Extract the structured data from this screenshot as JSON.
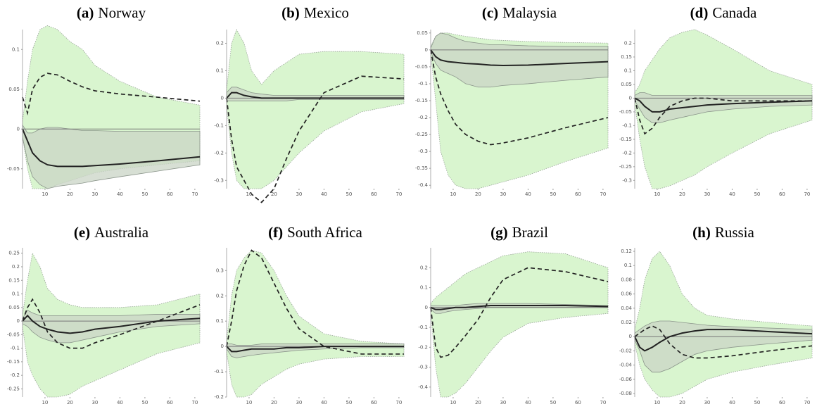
{
  "chart_data": [
    {
      "type": "line",
      "label": "(a)",
      "title": "Norway",
      "x": [
        1,
        3,
        5,
        8,
        11,
        15,
        20,
        25,
        30,
        40,
        55,
        72
      ],
      "xlim": [
        1,
        72
      ],
      "xticks": [
        10,
        20,
        30,
        40,
        50,
        60,
        70
      ],
      "ylim": [
        -0.075,
        0.125
      ],
      "yticks": [
        -0.05,
        0,
        0.05,
        0.1
      ],
      "bands": [
        {
          "color": "#d9f5cf",
          "lower": [
            -0.01,
            -0.05,
            -0.075,
            -0.075,
            -0.075,
            -0.07,
            -0.065,
            -0.06,
            -0.055,
            -0.05,
            -0.045,
            -0.04
          ],
          "upper": [
            0.01,
            0.06,
            0.1,
            0.125,
            0.13,
            0.125,
            0.11,
            0.1,
            0.08,
            0.06,
            0.04,
            0.03
          ]
        },
        {
          "color": "#c9d4c6",
          "lower": [
            -0.01,
            -0.04,
            -0.06,
            -0.07,
            -0.075,
            -0.072,
            -0.07,
            -0.068,
            -0.065,
            -0.06,
            -0.053,
            -0.045
          ],
          "upper": [
            0.005,
            -0.005,
            -0.005,
            0,
            0.002,
            0.002,
            0,
            -0.002,
            -0.002,
            -0.003,
            -0.003,
            -0.003
          ]
        }
      ],
      "series": [
        {
          "color": "#222222",
          "dash": false,
          "values": [
            0,
            -0.015,
            -0.03,
            -0.04,
            -0.045,
            -0.047,
            -0.047,
            -0.047,
            -0.046,
            -0.044,
            -0.04,
            -0.035
          ]
        },
        {
          "color": "#222222",
          "dash": true,
          "values": [
            0.04,
            0.02,
            0.05,
            0.065,
            0.07,
            0.068,
            0.06,
            0.053,
            0.048,
            0.044,
            0.04,
            0.035
          ]
        }
      ]
    },
    {
      "type": "line",
      "label": "(b)",
      "title": "Mexico",
      "x": [
        1,
        3,
        5,
        8,
        11,
        15,
        20,
        25,
        30,
        40,
        55,
        72
      ],
      "xlim": [
        1,
        72
      ],
      "xticks": [
        10,
        20,
        30,
        40,
        50,
        60,
        70
      ],
      "ylim": [
        -0.33,
        0.25
      ],
      "yticks": [
        -0.3,
        -0.2,
        -0.1,
        0,
        0.1,
        0.2
      ],
      "bands": [
        {
          "color": "#d9f5cf",
          "lower": [
            -0.03,
            -0.2,
            -0.3,
            -0.33,
            -0.33,
            -0.33,
            -0.3,
            -0.25,
            -0.2,
            -0.12,
            -0.05,
            -0.02
          ],
          "upper": [
            0.03,
            0.2,
            0.25,
            0.2,
            0.1,
            0.05,
            0.1,
            0.13,
            0.16,
            0.17,
            0.17,
            0.16
          ]
        },
        {
          "color": "#c9d4c6",
          "lower": [
            -0.01,
            -0.01,
            -0.01,
            -0.01,
            -0.01,
            -0.01,
            -0.01,
            -0.01,
            -0.005,
            -0.005,
            -0.005,
            -0.005
          ],
          "upper": [
            0.02,
            0.04,
            0.04,
            0.03,
            0.02,
            0.015,
            0.01,
            0.01,
            0.01,
            0.01,
            0.01,
            0.01
          ]
        }
      ],
      "series": [
        {
          "color": "#222222",
          "dash": false,
          "values": [
            0,
            0.02,
            0.02,
            0.01,
            0.005,
            0,
            0,
            0,
            0,
            0,
            0,
            0
          ]
        },
        {
          "color": "#222222",
          "dash": true,
          "values": [
            0,
            -0.15,
            -0.25,
            -0.3,
            -0.35,
            -0.38,
            -0.33,
            -0.22,
            -0.12,
            0.02,
            0.08,
            0.07
          ]
        }
      ]
    },
    {
      "type": "line",
      "label": "(c)",
      "title": "Malaysia",
      "x": [
        1,
        3,
        5,
        8,
        11,
        15,
        20,
        25,
        30,
        40,
        55,
        72
      ],
      "xlim": [
        1,
        72
      ],
      "xticks": [
        10,
        20,
        30,
        40,
        50,
        60,
        70
      ],
      "ylim": [
        -0.41,
        0.06
      ],
      "yticks": [
        -0.4,
        -0.35,
        -0.3,
        -0.25,
        -0.2,
        -0.15,
        -0.1,
        -0.05,
        0,
        0.05
      ],
      "bands": [
        {
          "color": "#d9f5cf",
          "lower": [
            -0.01,
            -0.15,
            -0.3,
            -0.37,
            -0.4,
            -0.41,
            -0.41,
            -0.4,
            -0.39,
            -0.37,
            -0.33,
            -0.29
          ],
          "upper": [
            0.01,
            0.04,
            0.05,
            0.05,
            0.045,
            0.04,
            0.035,
            0.03,
            0.028,
            0.025,
            0.022,
            0.02
          ]
        },
        {
          "color": "#c9d4c6",
          "lower": [
            -0.005,
            -0.04,
            -0.06,
            -0.07,
            -0.08,
            -0.1,
            -0.11,
            -0.11,
            -0.105,
            -0.1,
            -0.09,
            -0.08
          ],
          "upper": [
            0.005,
            0.04,
            0.05,
            0.045,
            0.035,
            0.025,
            0.02,
            0.015,
            0.015,
            0.012,
            0.01,
            0.01
          ]
        }
      ],
      "series": [
        {
          "color": "#222222",
          "dash": false,
          "values": [
            0,
            -0.02,
            -0.03,
            -0.035,
            -0.037,
            -0.04,
            -0.042,
            -0.045,
            -0.046,
            -0.045,
            -0.04,
            -0.035
          ]
        },
        {
          "color": "#222222",
          "dash": true,
          "values": [
            0,
            -0.08,
            -0.13,
            -0.18,
            -0.22,
            -0.25,
            -0.27,
            -0.28,
            -0.275,
            -0.26,
            -0.23,
            -0.2
          ]
        }
      ]
    },
    {
      "type": "line",
      "label": "(d)",
      "title": "Canada",
      "x": [
        1,
        3,
        5,
        8,
        11,
        15,
        20,
        25,
        30,
        40,
        55,
        72
      ],
      "xlim": [
        1,
        72
      ],
      "xticks": [
        10,
        20,
        30,
        40,
        50,
        60,
        70
      ],
      "ylim": [
        -0.33,
        0.25
      ],
      "yticks": [
        -0.3,
        -0.25,
        -0.2,
        -0.15,
        -0.1,
        -0.05,
        0,
        0.05,
        0.1,
        0.15,
        0.2
      ],
      "bands": [
        {
          "color": "#d9f5cf",
          "lower": [
            -0.02,
            -0.15,
            -0.25,
            -0.33,
            -0.33,
            -0.32,
            -0.3,
            -0.28,
            -0.25,
            -0.2,
            -0.13,
            -0.08
          ],
          "upper": [
            0.02,
            0.05,
            0.1,
            0.14,
            0.18,
            0.22,
            0.24,
            0.25,
            0.23,
            0.18,
            0.1,
            0.05
          ]
        },
        {
          "color": "#c9d4c6",
          "lower": [
            -0.01,
            -0.04,
            -0.07,
            -0.09,
            -0.09,
            -0.08,
            -0.07,
            -0.06,
            -0.05,
            -0.04,
            -0.03,
            -0.025
          ],
          "upper": [
            0.01,
            0.02,
            0.02,
            0.01,
            0.01,
            0.01,
            0.01,
            0.01,
            0.01,
            0.01,
            0.01,
            0.01
          ]
        }
      ],
      "series": [
        {
          "color": "#222222",
          "dash": false,
          "values": [
            0,
            -0.01,
            -0.03,
            -0.05,
            -0.05,
            -0.04,
            -0.035,
            -0.03,
            -0.025,
            -0.02,
            -0.015,
            -0.01
          ]
        },
        {
          "color": "#222222",
          "dash": true,
          "values": [
            0,
            -0.08,
            -0.13,
            -0.11,
            -0.07,
            -0.03,
            -0.01,
            0,
            0,
            -0.01,
            -0.01,
            -0.01
          ]
        }
      ]
    },
    {
      "type": "line",
      "label": "(e)",
      "title": "Australia",
      "x": [
        1,
        3,
        5,
        8,
        11,
        15,
        20,
        25,
        30,
        40,
        55,
        72
      ],
      "xlim": [
        1,
        72
      ],
      "xticks": [
        10,
        20,
        30,
        40,
        50,
        60,
        70
      ],
      "ylim": [
        -0.28,
        0.27
      ],
      "yticks": [
        -0.25,
        -0.2,
        -0.15,
        -0.1,
        -0.05,
        0,
        0.05,
        0.1,
        0.15,
        0.2,
        0.25
      ],
      "bands": [
        {
          "color": "#d9f5cf",
          "lower": [
            -0.02,
            -0.15,
            -0.2,
            -0.25,
            -0.28,
            -0.28,
            -0.27,
            -0.24,
            -0.22,
            -0.18,
            -0.12,
            -0.08
          ],
          "upper": [
            0.02,
            0.15,
            0.25,
            0.2,
            0.12,
            0.08,
            0.06,
            0.05,
            0.05,
            0.05,
            0.06,
            0.1
          ]
        },
        {
          "color": "#c9d4c6",
          "lower": [
            -0.01,
            -0.02,
            -0.04,
            -0.06,
            -0.07,
            -0.08,
            -0.08,
            -0.07,
            -0.06,
            -0.04,
            -0.02,
            -0.01
          ],
          "upper": [
            0.01,
            0.04,
            0.03,
            0.02,
            0.02,
            0.02,
            0.02,
            0.02,
            0.02,
            0.02,
            0.025,
            0.025
          ]
        }
      ],
      "series": [
        {
          "color": "#222222",
          "dash": false,
          "values": [
            0,
            0.02,
            0,
            -0.02,
            -0.03,
            -0.04,
            -0.045,
            -0.04,
            -0.03,
            -0.02,
            0,
            0.01
          ]
        },
        {
          "color": "#222222",
          "dash": true,
          "values": [
            0,
            0.05,
            0.08,
            0.03,
            -0.04,
            -0.08,
            -0.1,
            -0.1,
            -0.08,
            -0.05,
            0,
            0.06
          ]
        }
      ]
    },
    {
      "type": "line",
      "label": "(f)",
      "title": "South Africa",
      "x": [
        1,
        3,
        5,
        8,
        11,
        15,
        20,
        25,
        30,
        40,
        55,
        72
      ],
      "xlim": [
        1,
        72
      ],
      "xticks": [
        10,
        20,
        30,
        40,
        50,
        60,
        70
      ],
      "ylim": [
        -0.2,
        0.39
      ],
      "yticks": [
        -0.2,
        -0.1,
        0,
        0.1,
        0.2,
        0.3
      ],
      "bands": [
        {
          "color": "#d9f5cf",
          "lower": [
            -0.02,
            -0.15,
            -0.2,
            -0.2,
            -0.19,
            -0.15,
            -0.12,
            -0.09,
            -0.07,
            -0.05,
            -0.04,
            -0.04
          ],
          "upper": [
            0.02,
            0.2,
            0.3,
            0.35,
            0.38,
            0.37,
            0.3,
            0.2,
            0.12,
            0.05,
            0.02,
            0.01
          ]
        },
        {
          "color": "#c9d4c6",
          "lower": [
            -0.01,
            -0.04,
            -0.045,
            -0.04,
            -0.035,
            -0.03,
            -0.025,
            -0.02,
            -0.015,
            -0.01,
            -0.005,
            -0.005
          ],
          "upper": [
            0.01,
            0.01,
            0.005,
            0.005,
            0.005,
            0.01,
            0.01,
            0.01,
            0.01,
            0.01,
            0.01,
            0.01
          ]
        }
      ],
      "series": [
        {
          "color": "#222222",
          "dash": false,
          "values": [
            0,
            -0.02,
            -0.02,
            -0.015,
            -0.01,
            -0.01,
            -0.01,
            -0.005,
            -0.005,
            0,
            0,
            0
          ]
        },
        {
          "color": "#222222",
          "dash": true,
          "values": [
            0,
            0.1,
            0.22,
            0.32,
            0.38,
            0.35,
            0.25,
            0.15,
            0.07,
            0,
            -0.03,
            -0.03
          ]
        }
      ]
    },
    {
      "type": "line",
      "label": "(g)",
      "title": "Brazil",
      "x": [
        1,
        3,
        5,
        8,
        11,
        15,
        20,
        25,
        30,
        40,
        55,
        72
      ],
      "xlim": [
        1,
        72
      ],
      "xticks": [
        10,
        20,
        30,
        40,
        50,
        60,
        70
      ],
      "ylim": [
        -0.45,
        0.3
      ],
      "yticks": [
        -0.4,
        -0.3,
        -0.2,
        -0.1,
        0,
        0.1,
        0.2
      ],
      "bands": [
        {
          "color": "#d9f5cf",
          "lower": [
            -0.02,
            -0.3,
            -0.45,
            -0.45,
            -0.43,
            -0.38,
            -0.3,
            -0.22,
            -0.15,
            -0.08,
            -0.05,
            -0.03
          ],
          "upper": [
            0.02,
            0.05,
            0.07,
            0.1,
            0.13,
            0.17,
            0.2,
            0.23,
            0.26,
            0.28,
            0.27,
            0.2
          ]
        },
        {
          "color": "#c9d4c6",
          "lower": [
            -0.01,
            -0.03,
            -0.03,
            -0.02,
            -0.015,
            -0.01,
            -0.005,
            0,
            0,
            0,
            0,
            0
          ],
          "upper": [
            0.01,
            0.01,
            0.01,
            0.01,
            0.01,
            0.015,
            0.02,
            0.02,
            0.02,
            0.02,
            0.015,
            0.01
          ]
        }
      ],
      "series": [
        {
          "color": "#222222",
          "dash": false,
          "values": [
            0,
            -0.01,
            -0.01,
            -0.005,
            0,
            0,
            0.005,
            0.01,
            0.01,
            0.01,
            0.01,
            0.005
          ]
        },
        {
          "color": "#222222",
          "dash": true,
          "values": [
            0,
            -0.2,
            -0.25,
            -0.24,
            -0.2,
            -0.14,
            -0.06,
            0.05,
            0.14,
            0.2,
            0.18,
            0.13
          ]
        }
      ]
    },
    {
      "type": "line",
      "label": "(h)",
      "title": "Russia",
      "x": [
        1,
        3,
        5,
        8,
        11,
        15,
        20,
        25,
        30,
        40,
        55,
        72
      ],
      "xlim": [
        1,
        72
      ],
      "xticks": [
        10,
        20,
        30,
        40,
        50,
        60,
        70
      ],
      "ylim": [
        -0.085,
        0.125
      ],
      "yticks": [
        -0.08,
        -0.06,
        -0.04,
        -0.02,
        0,
        0.02,
        0.04,
        0.06,
        0.08,
        0.1,
        0.12
      ],
      "bands": [
        {
          "color": "#d9f5cf",
          "lower": [
            -0.01,
            -0.04,
            -0.06,
            -0.075,
            -0.085,
            -0.085,
            -0.08,
            -0.07,
            -0.06,
            -0.05,
            -0.04,
            -0.03
          ],
          "upper": [
            0.01,
            0.04,
            0.08,
            0.11,
            0.12,
            0.1,
            0.06,
            0.04,
            0.03,
            0.025,
            0.02,
            0.015
          ]
        },
        {
          "color": "#c9d4c6",
          "lower": [
            -0.005,
            -0.02,
            -0.04,
            -0.05,
            -0.05,
            -0.045,
            -0.035,
            -0.025,
            -0.02,
            -0.015,
            -0.01,
            -0.005
          ],
          "upper": [
            0.005,
            0.01,
            0.015,
            0.02,
            0.022,
            0.022,
            0.02,
            0.018,
            0.016,
            0.014,
            0.012,
            0.01
          ]
        }
      ],
      "series": [
        {
          "color": "#222222",
          "dash": false,
          "values": [
            0,
            -0.015,
            -0.02,
            -0.015,
            -0.008,
            0,
            0.005,
            0.008,
            0.01,
            0.01,
            0.007,
            0.004
          ]
        },
        {
          "color": "#222222",
          "dash": true,
          "values": [
            0,
            0.005,
            0.01,
            0.015,
            0.01,
            -0.01,
            -0.025,
            -0.03,
            -0.03,
            -0.027,
            -0.02,
            -0.013
          ]
        }
      ]
    }
  ]
}
